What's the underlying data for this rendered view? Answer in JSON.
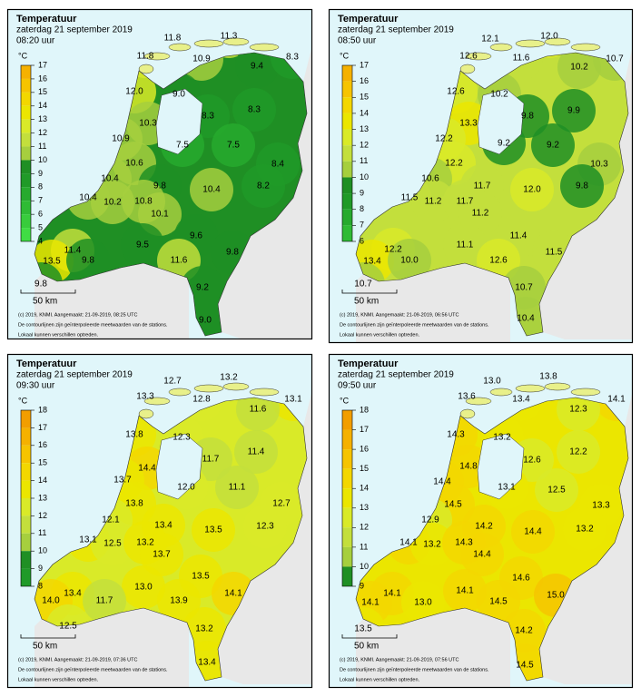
{
  "panels": [
    {
      "title": "Temperatuur",
      "date": "zaterdag 21 september 2019",
      "time": "08:20 uur",
      "unit": "°C",
      "legend_ticks": [
        17,
        16,
        15,
        14,
        13,
        12,
        11,
        10,
        9,
        8,
        7,
        6,
        5,
        4
      ],
      "stations": [
        "11.8",
        "11.3",
        "11.8",
        "10.9",
        "9.4",
        "8.3",
        "12.0",
        "9.0",
        "8.3",
        "8.3",
        "10.3",
        "10.9",
        "7.5",
        "7.5",
        "10.6",
        "8.4",
        "10.4",
        "9.8",
        "10.4",
        "8.2",
        "10.4",
        "10.2",
        "10.8",
        "10.1",
        "9.6",
        "11.4",
        "9.5",
        "9.8",
        "13.5",
        "9.8",
        "11.6",
        "9.8",
        "9.2",
        "9.0"
      ],
      "scale": "50 km",
      "footer": [
        "(c) 2019, KNMI. Aangemaakt: 21-09-2019, 08:25 UTC",
        "De contourlijnen zijn geïnterpoleerde meetwaarden van de stations.",
        "Lokaal kunnen verschillen optreden."
      ]
    },
    {
      "title": "Temperatuur",
      "date": "zaterdag 21 september 2019",
      "time": "08:50 uur",
      "unit": "°C",
      "legend_ticks": [
        17,
        16,
        15,
        14,
        13,
        12,
        11,
        10,
        9,
        8,
        7,
        6
      ],
      "stations": [
        "12.1",
        "12.0",
        "12.6",
        "11.6",
        "10.2",
        "10.7",
        "12.6",
        "10.2",
        "13.3",
        "9.8",
        "9.9",
        "12.2",
        "9.2",
        "9.2",
        "12.2",
        "10.3",
        "10.6",
        "11.7",
        "12.0",
        "9.8",
        "11.5",
        "11.2",
        "11.7",
        "11.2",
        "11.4",
        "12.2",
        "11.1",
        "11.5",
        "13.4",
        "10.0",
        "12.6",
        "10.7",
        "10.7",
        "10.4"
      ],
      "scale": "50 km",
      "footer": [
        "(c) 2019, KNMI. Aangemaakt: 21-09-2019, 06:56 UTC",
        "De contourlijnen zijn geïnterpoleerde meetwaarden van de stations.",
        "Lokaal kunnen verschillen optreden."
      ]
    },
    {
      "title": "Temperatuur",
      "date": "zaterdag 21 september 2019",
      "time": "09:30 uur",
      "unit": "°C",
      "legend_ticks": [
        18,
        17,
        16,
        15,
        14,
        13,
        12,
        11,
        10,
        9,
        8
      ],
      "stations": [
        "12.7",
        "13.2",
        "13.3",
        "12.8",
        "13.1",
        "11.6",
        "12.3",
        "13.8",
        "11.4",
        "14.4",
        "11.7",
        "13.7",
        "12.0",
        "11.1",
        "12.7",
        "13.8",
        "12.1",
        "13.4",
        "13.5",
        "12.3",
        "13.1",
        "12.5",
        "13.2",
        "13.7",
        "13.5",
        "13.4",
        "13.0",
        "14.1",
        "14.0",
        "11.7",
        "13.9",
        "12.5",
        "13.2",
        "13.4"
      ],
      "scale": "50 km",
      "footer": [
        "(c) 2019, KNMI. Aangemaakt: 21-09-2019, 07:36 UTC",
        "De contourlijnen zijn geïnterpoleerde meetwaarden van de stations.",
        "Lokaal kunnen verschillen optreden."
      ]
    },
    {
      "title": "Temperatuur",
      "date": "zaterdag 21 september 2019",
      "time": "09:50 uur",
      "unit": "°C",
      "legend_ticks": [
        18,
        17,
        16,
        15,
        14,
        13,
        12,
        11,
        10,
        9
      ],
      "stations": [
        "13.0",
        "13.8",
        "13.6",
        "13.4",
        "14.1",
        "12.3",
        "14.3",
        "13.2",
        "12.2",
        "14.8",
        "12.6",
        "14.4",
        "13.1",
        "12.5",
        "14.5",
        "13.3",
        "12.9",
        "14.2",
        "14.4",
        "13.2",
        "14.1",
        "13.2",
        "14.3",
        "14.4",
        "14.6",
        "14.1",
        "14.1",
        "15.0",
        "14.1",
        "13.0",
        "14.5",
        "13.5",
        "14.2",
        "14.5"
      ],
      "scale": "50 km",
      "footer": [
        "(c) 2019, KNMI. Aangemaakt: 21-09-2019, 07:56 UTC",
        "De contourlijnen zijn geïnterpoleerde meetwaarden van de stations.",
        "Lokaal kunnen verschillen optreden."
      ]
    }
  ]
}
